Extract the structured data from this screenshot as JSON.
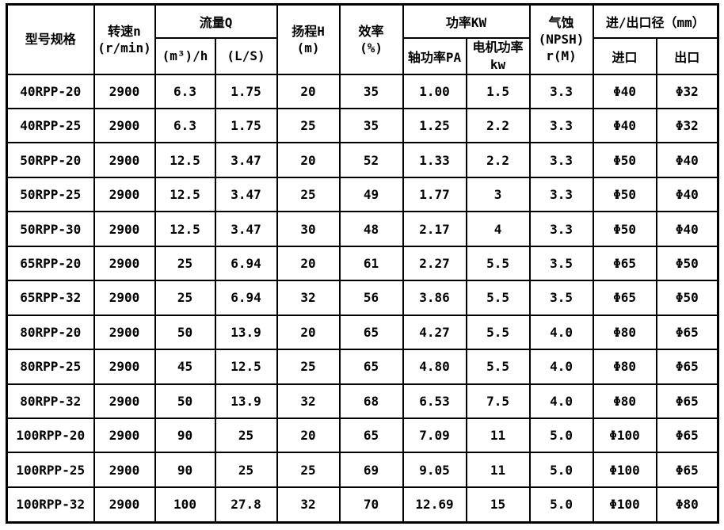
{
  "page": {
    "background_color": "#ffffff",
    "border_color": "#000000",
    "text_color": "#000000"
  },
  "table": {
    "header": {
      "model": [
        "型号规格"
      ],
      "speed": [
        "转速n",
        "(r/min)"
      ],
      "flow": [
        "流量Q"
      ],
      "flow_m3h": [
        "(m³)/h"
      ],
      "flow_ls": [
        "(L/S)"
      ],
      "head": [
        "扬程H",
        "(m)"
      ],
      "efficiency": [
        "效率",
        "(%)"
      ],
      "power": [
        "功率KW"
      ],
      "shaft_power": [
        "轴功率PA"
      ],
      "motor_power": [
        "电机功率",
        "kw"
      ],
      "npsh": [
        "气蚀",
        "(NPSH)",
        "r(M)"
      ],
      "ports": [
        "进/出口径（mm）"
      ],
      "inlet": [
        "进口"
      ],
      "outlet": [
        "出口"
      ]
    },
    "columns": [
      "model",
      "speed",
      "flow-m3h",
      "flow-ls",
      "head",
      "efficiency",
      "shaft-power",
      "motor-power",
      "npsh",
      "inlet",
      "outlet"
    ],
    "rows": [
      [
        "40RPP-20",
        "2900",
        "6.3",
        "1.75",
        "20",
        "35",
        "1.00",
        "1.5",
        "3.3",
        "Φ40",
        "Φ32"
      ],
      [
        "40RPP-25",
        "2900",
        "6.3",
        "1.75",
        "25",
        "35",
        "1.25",
        "2.2",
        "3.3",
        "Φ40",
        "Φ32"
      ],
      [
        "50RPP-20",
        "2900",
        "12.5",
        "3.47",
        "20",
        "52",
        "1.33",
        "2.2",
        "3.3",
        "Φ50",
        "Φ40"
      ],
      [
        "50RPP-25",
        "2900",
        "12.5",
        "3.47",
        "25",
        "49",
        "1.77",
        "3",
        "3.3",
        "Φ50",
        "Φ40"
      ],
      [
        "50RPP-30",
        "2900",
        "12.5",
        "3.47",
        "30",
        "48",
        "2.17",
        "4",
        "3.3",
        "Φ50",
        "Φ40"
      ],
      [
        "65RPP-20",
        "2900",
        "25",
        "6.94",
        "20",
        "61",
        "2.27",
        "5.5",
        "3.5",
        "Φ65",
        "Φ50"
      ],
      [
        "65RPP-32",
        "2900",
        "25",
        "6.94",
        "32",
        "56",
        "3.86",
        "5.5",
        "3.5",
        "Φ65",
        "Φ50"
      ],
      [
        "80RPP-20",
        "2900",
        "50",
        "13.9",
        "20",
        "65",
        "4.27",
        "5.5",
        "4.0",
        "Φ80",
        "Φ65"
      ],
      [
        "80RPP-25",
        "2900",
        "45",
        "12.5",
        "25",
        "65",
        "4.80",
        "5.5",
        "4.0",
        "Φ80",
        "Φ65"
      ],
      [
        "80RPP-32",
        "2900",
        "50",
        "13.9",
        "32",
        "68",
        "6.53",
        "7.5",
        "4.0",
        "Φ80",
        "Φ65"
      ],
      [
        "100RPP-20",
        "2900",
        "90",
        "25",
        "20",
        "65",
        "7.09",
        "11",
        "5.0",
        "Φ100",
        "Φ65"
      ],
      [
        "100RPP-25",
        "2900",
        "90",
        "25",
        "25",
        "69",
        "9.05",
        "11",
        "5.0",
        "Φ100",
        "Φ65"
      ],
      [
        "100RPP-32",
        "2900",
        "100",
        "27.8",
        "32",
        "70",
        "12.69",
        "15",
        "5.0",
        "Φ100",
        "Φ80"
      ]
    ]
  }
}
